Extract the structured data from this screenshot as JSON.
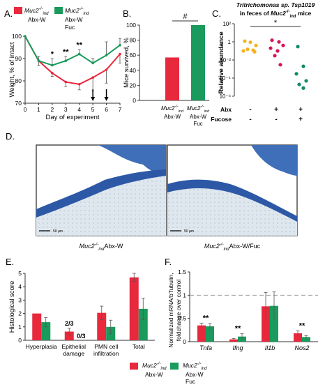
{
  "panel_labels": {
    "A": "A.",
    "B": "B.",
    "C": "C.",
    "D": "D.",
    "E": "E.",
    "F": "F."
  },
  "colors": {
    "red": "#e8283c",
    "green": "#1a9a5c",
    "yellow": "#f3b321",
    "crimson": "#d4145a",
    "teal": "#0f8a6b"
  },
  "chart_data": [
    {
      "id": "A",
      "type": "line",
      "ylabel": "Weight, % of intact",
      "xlabel": "Day of experiment",
      "x": [
        0,
        1,
        2,
        3,
        4,
        5,
        6,
        7
      ],
      "xlim": [
        0,
        7
      ],
      "ylim": [
        70,
        100
      ],
      "yticks": [
        70,
        80,
        90,
        100
      ],
      "series": [
        {
          "name": "Abx-W",
          "legend_top": "Muc2",
          "legend_sup": "-/-",
          "legend_sub": "ind",
          "color": "#e8283c",
          "values": [
            100,
            89,
            83.5,
            79.5,
            78.5,
            81.5,
            85,
            92
          ],
          "errors": [
            0,
            2,
            1.5,
            2,
            2.5,
            6,
            6,
            4
          ]
        },
        {
          "name": "Abx-W Fuc",
          "legend_top": "Muc2",
          "legend_sup": "-/-",
          "legend_sub": "ind",
          "legend_line2": "Abx-W",
          "legend_line3": "Fuc",
          "color": "#1a9a5c",
          "values": [
            100,
            89,
            87,
            89,
            92,
            88,
            91.5,
            96
          ],
          "errors": [
            0,
            2,
            3,
            2,
            2,
            2,
            6,
            3
          ]
        }
      ],
      "significance": [
        {
          "x": 2,
          "label": "*"
        },
        {
          "x": 3,
          "label": "**"
        },
        {
          "x": 4,
          "label": "**"
        }
      ],
      "arrows_at": [
        5,
        6
      ]
    },
    {
      "id": "B",
      "type": "bar",
      "ylabel": "Mice survived, %",
      "ylim": [
        0,
        100
      ],
      "yticks": [
        0,
        20,
        40,
        60,
        80,
        100
      ],
      "categories": [
        "Abx-W",
        "Abx-W Fuc"
      ],
      "values": [
        57,
        100
      ],
      "colors": [
        "#e8283c",
        "#1a9a5c"
      ],
      "tick_top": [
        "Muc2",
        "Muc2"
      ],
      "tick_sup": [
        "-/-",
        "-/-"
      ],
      "tick_sub": [
        "ind",
        "ind"
      ],
      "tick_line2": [
        "Abx-W",
        "Abx-W"
      ],
      "tick_line3": [
        "",
        "Fuc"
      ],
      "significance": "#"
    },
    {
      "id": "C",
      "type": "scatter",
      "title": "Tritrichomonas sp. Tsp1019",
      "title_line2": "in feces of",
      "title_gene": "Muc2",
      "title_sup": "-/-",
      "title_sub": "ind",
      "title_end": " mice",
      "ylabel": "Relative abundance",
      "yscale": "log",
      "yticks": [
        "10²",
        "1",
        "10⁻²",
        "10⁻⁴",
        "10⁻⁶"
      ],
      "groups": [
        {
          "color": "#f3b321",
          "points": [
            1.2,
            0.9,
            0.4,
            0.15,
            0.12,
            0.1,
            0.08
          ]
        },
        {
          "color": "#d4145a",
          "points": [
            1.5,
            1.0,
            0.4,
            0.2,
            0.1,
            0.03,
            0.003
          ]
        },
        {
          "color": "#0f8a6b",
          "points": [
            0.3,
            0.002,
            0.0003,
            5e-05,
            2e-05,
            8e-06
          ]
        }
      ],
      "factor_rows": [
        {
          "label": "Abx",
          "marks": [
            "-",
            "+",
            "+"
          ]
        },
        {
          "label": "Fucose",
          "marks": [
            "-",
            "-",
            "+"
          ]
        }
      ],
      "significance": "*"
    },
    {
      "id": "E",
      "type": "bar",
      "ylabel": "Histological score",
      "ylim": [
        0,
        5
      ],
      "yticks": [
        0,
        1,
        2,
        3,
        4,
        5
      ],
      "categories": [
        "Hyperplasia",
        "Epithelial damage",
        "PMN cell infiltration",
        "Total"
      ],
      "category_lines": [
        [
          "Hyperplasia"
        ],
        [
          "Epithelial",
          "damage"
        ],
        [
          "PMN cell",
          "infiltration"
        ],
        [
          "Total"
        ]
      ],
      "series": [
        {
          "name": "Abx-W",
          "color": "#e8283c",
          "values": [
            2,
            0.65,
            2.05,
            4.7
          ],
          "errors": [
            0,
            0.25,
            0.5,
            0.3
          ]
        },
        {
          "name": "Abx-W Fuc",
          "color": "#1a9a5c",
          "values": [
            1.35,
            0,
            1,
            2.35
          ],
          "errors": [
            0.35,
            0,
            0.5,
            0.8
          ]
        }
      ],
      "annotations": [
        "2/3",
        "0/3"
      ]
    },
    {
      "id": "F",
      "type": "bar",
      "ylabel": "Normalized mRNA/bTubulin, foldchange over control",
      "ylabel_line1": "Normalized mRNA/bTubulin,",
      "ylabel_line2": "foldchange over control",
      "ylim": [
        0,
        1.5
      ],
      "yticks": [
        "0",
        "0.5",
        "1",
        "1.5"
      ],
      "categories": [
        "Tnfa",
        "Ifng",
        "Il1b",
        "Nos2"
      ],
      "series": [
        {
          "name": "Abx-W",
          "color": "#e8283c",
          "values": [
            0.35,
            0.05,
            0.76,
            0.18
          ],
          "errors": [
            0.05,
            0.02,
            0.3,
            0.05
          ]
        },
        {
          "name": "Abx-W Fuc",
          "color": "#1a9a5c",
          "values": [
            0.33,
            0.11,
            0.77,
            0.1
          ],
          "errors": [
            0.06,
            0.06,
            0.3,
            0.03
          ]
        }
      ],
      "significance": [
        "**",
        "**",
        "",
        "**"
      ],
      "reference_line": 1
    }
  ],
  "panel_d": {
    "scale_left": "50 µm",
    "scale_right": "50 µm",
    "caption_left_gene": "Muc2",
    "caption_left_sup": "-/-",
    "caption_left_sub": "ind",
    "caption_left_rest": "Abx-W",
    "caption_right_gene": "Muc2",
    "caption_right_sup": "-/-",
    "caption_right_sub": "ind",
    "caption_right_rest": "Abx-W/Fuc"
  },
  "bottom_legend": [
    {
      "gene": "Muc2",
      "sup": "-/-",
      "sub": "ind",
      "line2": "Abx-W",
      "line3": "",
      "color": "#e8283c"
    },
    {
      "gene": "Muc2",
      "sup": "-/-",
      "sub": "ind",
      "line2": "Abx-W",
      "line3": "Fuc",
      "color": "#1a9a5c"
    }
  ]
}
